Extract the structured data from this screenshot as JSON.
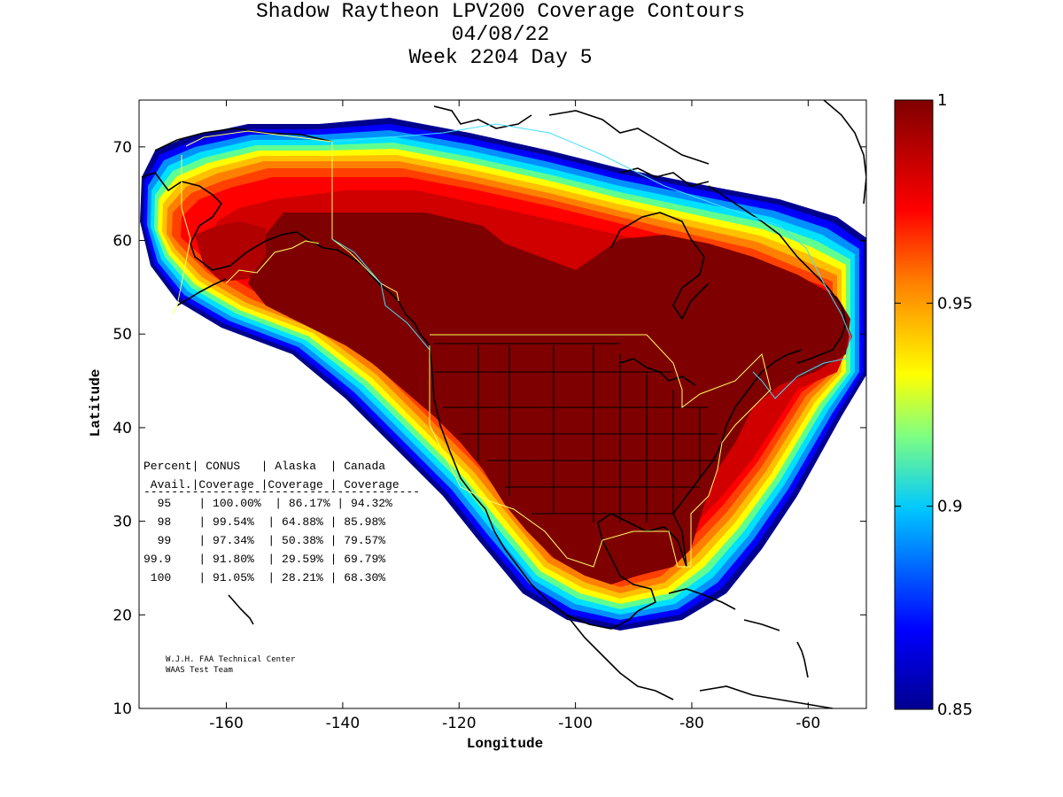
{
  "title": {
    "line1": "Shadow Raytheon LPV200 Coverage Contours",
    "line2": "04/08/22",
    "line3": "Week 2204 Day 5"
  },
  "axes": {
    "xlabel": "Longitude",
    "ylabel": "Latitude",
    "xlim": [
      -175,
      -50
    ],
    "ylim": [
      10,
      75
    ],
    "xticks": [
      "-160",
      "-140",
      "-120",
      "-100",
      "-80",
      "-60"
    ],
    "xtick_values": [
      -160,
      -140,
      -120,
      -100,
      -80,
      -60
    ],
    "yticks": [
      "10",
      "20",
      "30",
      "40",
      "50",
      "60",
      "70"
    ],
    "ytick_values": [
      10,
      20,
      30,
      40,
      50,
      60,
      70
    ]
  },
  "colorbar": {
    "min": 0.85,
    "max": 1,
    "labels": [
      "1",
      "0.95",
      "0.9",
      "0.85"
    ],
    "label_values": [
      1,
      0.95,
      0.9,
      0.85
    ],
    "colors": [
      "#7f0000",
      "#ff0000",
      "#ff8000",
      "#ffff00",
      "#00ffff",
      "#0080ff",
      "#00008f"
    ]
  },
  "stats_table": {
    "header1": "Percent| CONUS   | Alaska  | Canada",
    "header2": " Avail.|Coverage |Coverage | Coverage",
    "divider": "----------------------------------------",
    "rows": [
      "  95    | 100.00%  | 86.17% | 94.32%",
      "  98    | 99.54%  | 64.88% | 85.98%",
      "  99    | 97.34%  | 50.38% | 79.57%",
      "99.9    | 91.80%  | 29.59% | 69.79%",
      " 100    | 91.05%  | 28.21% | 68.30%"
    ]
  },
  "credit": {
    "line1": "W.J.H. FAA Technical Center",
    "line2": "WAAS Test Team"
  },
  "chart_data": {
    "type": "heatmap",
    "title": "Shadow Raytheon LPV200 Coverage Contours",
    "xlabel": "Longitude",
    "ylabel": "Latitude",
    "xlim": [
      -175,
      -50
    ],
    "ylim": [
      10,
      75
    ],
    "colorbar_range": [
      0.85,
      1
    ],
    "coverage_table": {
      "columns": [
        "Percent Avail.",
        "CONUS Coverage",
        "Alaska Coverage",
        "Canada Coverage"
      ],
      "rows": [
        [
          95,
          100.0,
          86.17,
          94.32
        ],
        [
          98,
          99.54,
          64.88,
          85.98
        ],
        [
          99,
          97.34,
          50.38,
          79.57
        ],
        [
          99.9,
          91.8,
          29.59,
          69.79
        ],
        [
          100,
          91.05,
          28.21,
          68.3
        ]
      ]
    }
  }
}
